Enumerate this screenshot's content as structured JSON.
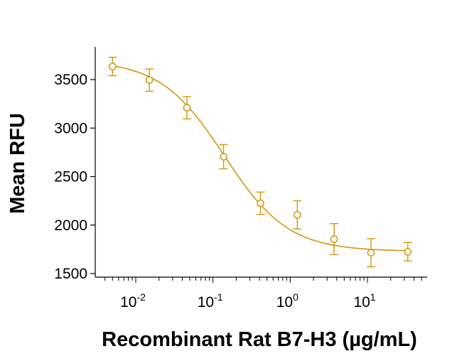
{
  "chart_data": {
    "type": "scatter",
    "title": "",
    "xlabel": "Recombinant Rat B7-H3 (µg/mL)",
    "ylabel": "Mean RFU",
    "x_scale": "log10",
    "xlim": [
      0.0035,
      60
    ],
    "ylim": [
      1500,
      3800
    ],
    "yticks": [
      1500,
      2000,
      2500,
      3000,
      3500
    ],
    "xticks": [
      {
        "value": 0.01,
        "base": "10",
        "exponent": "-2"
      },
      {
        "value": 0.1,
        "base": "10",
        "exponent": "-1"
      },
      {
        "value": 1,
        "base": "10",
        "exponent": "0"
      },
      {
        "value": 10,
        "base": "10",
        "exponent": "1"
      }
    ],
    "color": "#D4950F",
    "series": [
      {
        "name": "Mean RFU",
        "x": [
          0.005,
          0.015,
          0.046,
          0.137,
          0.412,
          1.235,
          3.7,
          11.1,
          33.3
        ],
        "y": [
          3635,
          3495,
          3210,
          2705,
          2225,
          2105,
          1855,
          1715,
          1725
        ],
        "err": [
          95,
          115,
          115,
          125,
          115,
          145,
          160,
          145,
          95
        ]
      }
    ],
    "fit": {
      "model": "4PL",
      "top": 3700,
      "bottom": 1730,
      "ec50": 0.14,
      "hill": 1.05
    }
  }
}
